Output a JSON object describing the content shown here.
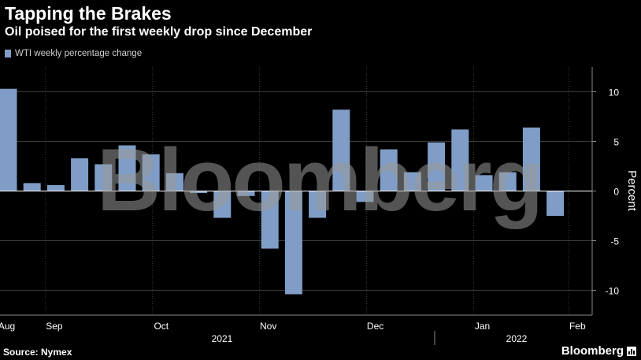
{
  "header": {
    "title": "Tapping the Brakes",
    "subtitle": "Oil poised for the first weekly drop since December"
  },
  "footer": {
    "source": "Source: Nymex",
    "brand": "Bloomberg",
    "watermark": "Bloomberg"
  },
  "colors": {
    "background": "#000000",
    "bar": "#7f9dc6",
    "grid": "#3a3a3a",
    "axis": "#8a8a8a"
  },
  "chart_data": {
    "type": "bar",
    "title": "Tapping the Brakes",
    "subtitle": "Oil poised for the first weekly drop since December",
    "ylabel": "Percent",
    "ylim": [
      -12.5,
      12.5
    ],
    "yticks": [
      10,
      5,
      0,
      -5,
      -10
    ],
    "yaxis_position": "right",
    "grid": true,
    "legend_position": "top-left",
    "series": [
      {
        "name": "WTI weekly percentage change",
        "values": [
          10.3,
          0.8,
          0.6,
          3.3,
          2.7,
          4.6,
          3.7,
          1.8,
          -0.2,
          -2.7,
          -0.5,
          -5.8,
          -10.4,
          -2.7,
          8.2,
          -1.1,
          4.2,
          1.9,
          4.9,
          6.2,
          1.6,
          1.9,
          6.4,
          -2.5
        ]
      }
    ],
    "x_month_ticks": [
      {
        "label": "Aug",
        "index": 0
      },
      {
        "label": "Sep",
        "index": 2
      },
      {
        "label": "Oct",
        "index": 6.5
      },
      {
        "label": "Nov",
        "index": 11
      },
      {
        "label": "Dec",
        "index": 15.5
      },
      {
        "label": "Jan",
        "index": 20
      },
      {
        "label": "Feb",
        "index": 24
      }
    ],
    "x_year_labels": [
      "2021",
      "2022"
    ]
  }
}
